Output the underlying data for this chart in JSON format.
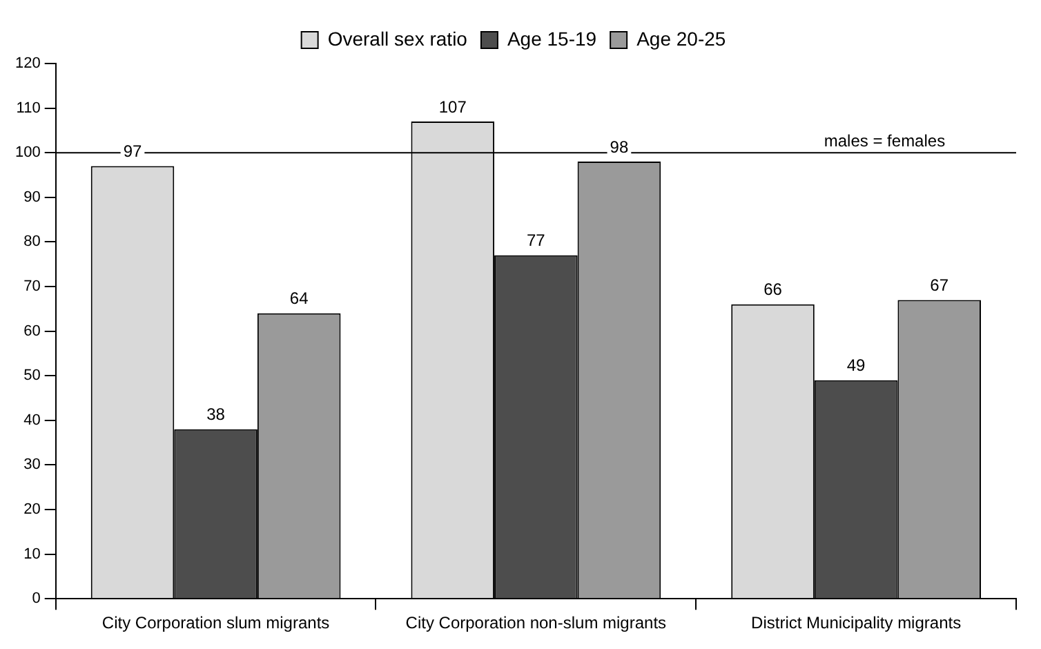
{
  "chart_data": {
    "type": "bar",
    "categories": [
      "City Corporation slum migrants",
      "City Corporation non-slum migrants",
      "District Municipality migrants"
    ],
    "series": [
      {
        "name": "Overall sex ratio",
        "color": "#d9d9d9",
        "values": [
          97,
          107,
          66
        ]
      },
      {
        "name": "Age 15-19",
        "color": "#4d4d4d",
        "values": [
          38,
          77,
          49
        ]
      },
      {
        "name": "Age 20-25",
        "color": "#9a9a9a",
        "values": [
          64,
          98,
          67
        ]
      }
    ],
    "ylim": [
      0,
      120
    ],
    "yticks": [
      0,
      10,
      20,
      30,
      40,
      50,
      60,
      70,
      80,
      90,
      100,
      110,
      120
    ],
    "ref_lines": [
      {
        "axis": "y",
        "value": 100,
        "label": "males = females",
        "color": "#000000"
      }
    ],
    "data_labels": true,
    "legend": "top",
    "grid": false
  }
}
